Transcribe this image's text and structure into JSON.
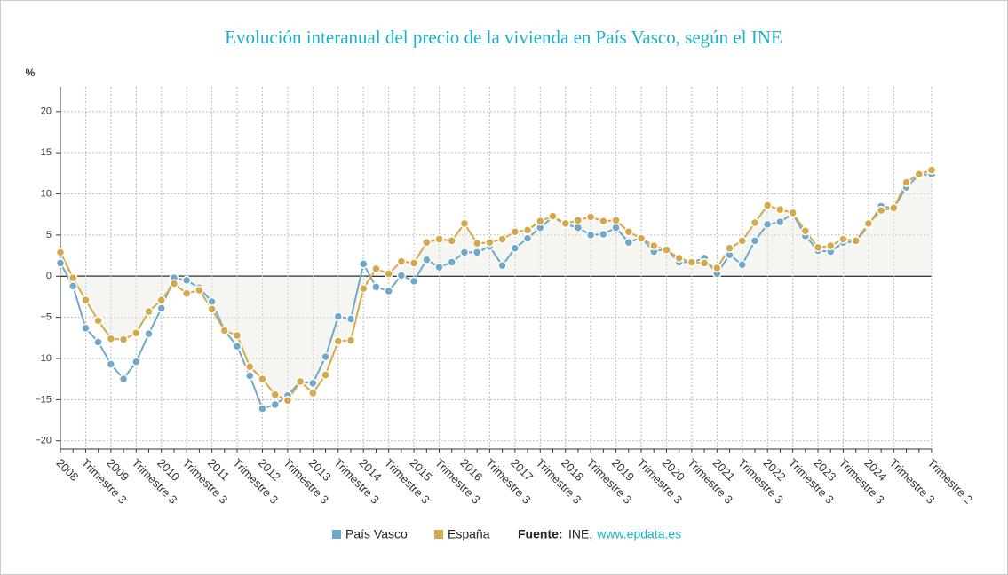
{
  "chart_data": {
    "type": "line",
    "title": "Evolución interanual del precio de la vivienda en País Vasco, según el INE",
    "y_label": "%",
    "categories": [
      "2008",
      null,
      "Trimestre 3",
      null,
      "2009",
      null,
      "Trimestre 3",
      null,
      "2010",
      null,
      "Trimestre 3",
      null,
      "2011",
      null,
      "Trimestre 3",
      null,
      "2012",
      null,
      "Trimestre 3",
      null,
      "2013",
      null,
      "Trimestre 3",
      null,
      "2014",
      null,
      "Trimestre 3",
      null,
      "2015",
      null,
      "Trimestre 3",
      null,
      "2016",
      null,
      "Trimestre 3",
      null,
      "2017",
      null,
      "Trimestre 3",
      null,
      "2018",
      null,
      "Trimestre 3",
      null,
      "2019",
      null,
      "Trimestre 3",
      null,
      "2020",
      null,
      "Trimestre 3",
      null,
      "2021",
      null,
      "Trimestre 3",
      null,
      "2022",
      null,
      "Trimestre 3",
      null,
      "2023",
      null,
      "Trimestre 3",
      null,
      "2024",
      null,
      "Trimestre 3",
      null,
      null,
      "Trimestre 2"
    ],
    "series": [
      {
        "name": "País Vasco",
        "color": "#6fa8c8",
        "values": [
          1.6,
          -1.2,
          -6.3,
          -8.0,
          -10.7,
          -12.5,
          -10.4,
          -7.0,
          -3.9,
          -0.2,
          -0.5,
          -1.4,
          -3.1,
          -6.6,
          -8.5,
          -12.1,
          -16.1,
          -15.6,
          -14.5,
          -12.8,
          -13.0,
          -9.8,
          -4.9,
          -5.2,
          1.5,
          -1.3,
          -1.8,
          0.1,
          -0.6,
          2.0,
          1.1,
          1.7,
          2.9,
          2.9,
          3.6,
          1.3,
          3.4,
          4.6,
          5.9,
          7.2,
          6.3,
          5.9,
          5.0,
          5.1,
          5.9,
          4.1,
          4.7,
          3.0,
          3.3,
          1.7,
          1.7,
          2.2,
          0.3,
          2.6,
          1.4,
          4.3,
          6.3,
          6.6,
          7.6,
          4.9,
          3.1,
          3.0,
          4.1,
          4.2,
          6.2,
          8.5,
          8.3,
          10.8,
          12.3,
          12.4
        ]
      },
      {
        "name": "España",
        "color": "#d4a84b",
        "values": [
          2.9,
          -0.2,
          -2.9,
          -5.4,
          -7.6,
          -7.7,
          -6.9,
          -4.3,
          -2.9,
          -0.9,
          -2.1,
          -1.7,
          -4.0,
          -6.6,
          -7.2,
          -11.0,
          -12.5,
          -14.4,
          -15.1,
          -12.8,
          -14.2,
          -12.0,
          -7.9,
          -7.8,
          -1.5,
          0.9,
          0.3,
          1.8,
          1.6,
          4.1,
          4.5,
          4.3,
          6.4,
          4.0,
          4.1,
          4.5,
          5.4,
          5.6,
          6.7,
          7.3,
          6.4,
          6.8,
          7.2,
          6.7,
          6.8,
          5.4,
          4.6,
          3.7,
          3.2,
          2.2,
          1.7,
          1.6,
          1.0,
          3.4,
          4.3,
          6.5,
          8.6,
          8.1,
          7.7,
          5.5,
          3.5,
          3.7,
          4.5,
          4.3,
          6.4,
          8.0,
          8.3,
          11.4,
          12.4,
          12.9
        ]
      }
    ],
    "ylim": [
      -21,
      23
    ],
    "yticks": [
      {
        "value": -20,
        "label": "−20"
      },
      {
        "value": -15,
        "label": "−15"
      },
      {
        "value": -10,
        "label": "−10"
      },
      {
        "value": -5,
        "label": "−5"
      },
      0,
      5,
      10,
      15,
      20
    ],
    "grid": true,
    "source_label": "Fuente:",
    "source": "INE,",
    "source_link": "www.epdata.es"
  }
}
